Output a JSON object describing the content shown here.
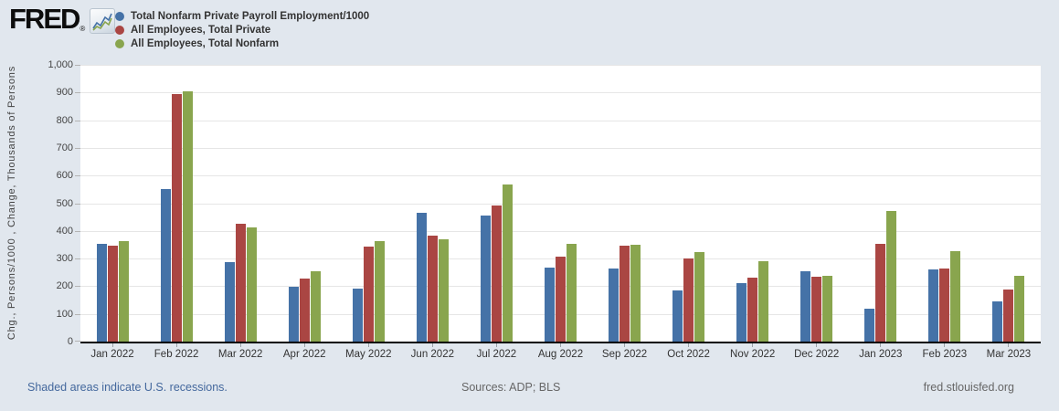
{
  "header": {
    "logo_text": "FRED",
    "logo_registered": "®"
  },
  "chart_data": {
    "type": "bar",
    "title": "",
    "xlabel": "",
    "ylabel": "Chg., Persons/1000 , Change, Thousands of Persons",
    "ylim": [
      0,
      1000
    ],
    "ytick_interval": 100,
    "grid": true,
    "legend_position": "top-left",
    "categories": [
      "Jan 2022",
      "Feb 2022",
      "Mar 2022",
      "Apr 2022",
      "May 2022",
      "Jun 2022",
      "Jul 2022",
      "Aug 2022",
      "Sep 2022",
      "Oct 2022",
      "Nov 2022",
      "Dec 2022",
      "Jan 2023",
      "Feb 2023",
      "Mar 2023"
    ],
    "series": [
      {
        "name": "Total Nonfarm Private Payroll Employment/1000",
        "color": "#4572a7",
        "values": [
          352,
          552,
          288,
          198,
          190,
          466,
          457,
          268,
          263,
          186,
          212,
          253,
          119,
          261,
          145
        ]
      },
      {
        "name": "All Employees, Total Private",
        "color": "#aa4643",
        "values": [
          346,
          896,
          426,
          229,
          344,
          383,
          493,
          308,
          347,
          300,
          230,
          235,
          353,
          265,
          189
        ]
      },
      {
        "name": "All Employees, Total Nonfarm",
        "color": "#89a54e",
        "values": [
          364,
          904,
          414,
          254,
          364,
          370,
          568,
          352,
          350,
          324,
          290,
          239,
          472,
          326,
          236
        ]
      }
    ]
  },
  "footer": {
    "recession_note": "Shaded areas indicate U.S. recessions.",
    "sources": "Sources: ADP; BLS",
    "site": "fred.stlouisfed.org"
  },
  "colors": {
    "page_background": "#e1e7ee",
    "plot_background": "#ffffff",
    "gridline": "#e6e6e6",
    "axis_line": "#000000",
    "tick_label": "#444444",
    "legend_text": "#333333",
    "link_blue": "#44689d",
    "footer_gray": "#666666"
  },
  "icons": {
    "logo_chart_icon": "line-chart-icon"
  }
}
